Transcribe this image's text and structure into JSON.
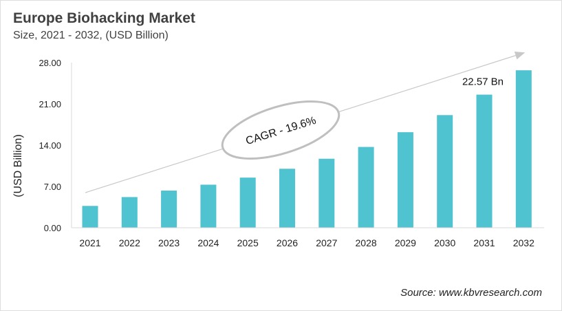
{
  "chart_data": {
    "type": "bar",
    "title": "Europe Biohacking Market",
    "subtitle": "Size, 2021 - 2032, (USD Billion)",
    "xlabel": "",
    "ylabel": "(USD Billion)",
    "categories": [
      "2021",
      "2022",
      "2023",
      "2024",
      "2025",
      "2026",
      "2027",
      "2028",
      "2029",
      "2030",
      "2031",
      "2032"
    ],
    "values": [
      3.7,
      5.2,
      6.3,
      7.3,
      8.5,
      10.0,
      11.7,
      13.7,
      16.2,
      19.1,
      22.57,
      26.7
    ],
    "ylim": [
      0,
      28
    ],
    "yticks": [
      "0.00",
      "7.00",
      "14.00",
      "21.00",
      "28.00"
    ],
    "grid": false,
    "bar_color": "#4fc3cf",
    "annotations": {
      "value_label": "22.57 Bn",
      "cagr": "CAGR - 19.6%"
    },
    "source": "Source: www.kbvresearch.com"
  }
}
